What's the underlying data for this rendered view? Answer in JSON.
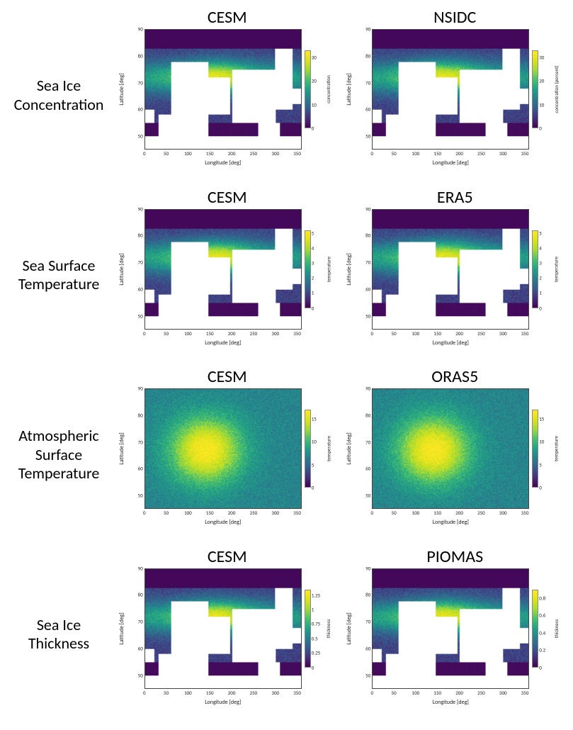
{
  "axis": {
    "xlabel": "Longitude [deg]",
    "ylabel": "Latitude [deg]",
    "xticks": [
      0,
      50,
      100,
      150,
      200,
      250,
      300,
      350
    ],
    "yticks": [
      50,
      60,
      70,
      80,
      90
    ],
    "xlim": [
      0,
      360
    ],
    "ylim": [
      45,
      90
    ],
    "tick_fontsize": 7,
    "label_fontsize": 8,
    "title_fontsize": 24,
    "rowlabel_fontsize": 22
  },
  "cmap": {
    "name": "viridis",
    "stops": [
      [
        0.0,
        "#440154"
      ],
      [
        0.13,
        "#46307e"
      ],
      [
        0.25,
        "#365c8d"
      ],
      [
        0.38,
        "#277f8e"
      ],
      [
        0.5,
        "#1fa187"
      ],
      [
        0.63,
        "#4ac16d"
      ],
      [
        0.75,
        "#a0da39"
      ],
      [
        0.88,
        "#dce319"
      ],
      [
        1.0,
        "#fde725"
      ]
    ]
  },
  "rows": [
    {
      "label": "Sea Ice Concentration",
      "clabel": "concentration",
      "clabel_right": "concentration (percent)",
      "land_color": "#ffffff",
      "show_land": true,
      "full_field": false,
      "left": {
        "title": "CESM",
        "cticks": [
          0,
          10,
          20,
          30
        ],
        "crange": [
          0,
          33
        ]
      },
      "right": {
        "title": "NSIDC",
        "cticks": [
          0,
          10,
          20,
          30
        ],
        "crange": [
          0,
          33
        ]
      }
    },
    {
      "label": "Sea Surface Temperature",
      "clabel": "temperature",
      "land_color": "#ffffff",
      "show_land": true,
      "full_field": false,
      "left": {
        "title": "CESM",
        "cticks": [
          0,
          1,
          2,
          3,
          4,
          5
        ],
        "crange": [
          0,
          5.2
        ]
      },
      "right": {
        "title": "ERA5",
        "cticks": [
          0,
          1,
          2,
          3,
          4,
          5
        ],
        "crange": [
          0,
          5.2
        ]
      }
    },
    {
      "label": "Atmospheric Surface Temperature",
      "clabel": "temperature",
      "land_color": "#ffffff",
      "show_land": false,
      "full_field": true,
      "left": {
        "title": "CESM",
        "cticks": [
          0,
          5,
          10,
          15
        ],
        "crange": [
          0,
          17
        ]
      },
      "right": {
        "title": "ORAS5",
        "cticks": [
          0,
          5,
          10,
          15
        ],
        "crange": [
          0,
          17
        ]
      }
    },
    {
      "label": "Sea Ice Thickness",
      "clabel": "thickness",
      "land_color": "#ffffff",
      "show_land": true,
      "full_field": false,
      "left": {
        "title": "CESM",
        "cticks": [
          0.0,
          0.25,
          0.5,
          0.75,
          1.0,
          1.25
        ],
        "crange": [
          0,
          1.35
        ]
      },
      "right": {
        "title": "PIOMAS",
        "cticks": [
          0.0,
          0.2,
          0.4,
          0.6,
          0.8
        ],
        "crange": [
          0,
          0.9
        ]
      }
    }
  ],
  "land_blocks": [
    [
      0,
      55,
      20,
      60,
      1
    ],
    [
      30,
      45,
      90,
      58,
      1
    ],
    [
      60,
      45,
      145,
      78,
      1
    ],
    [
      145,
      58,
      195,
      72,
      1
    ],
    [
      200,
      55,
      300,
      75,
      1
    ],
    [
      260,
      45,
      310,
      55,
      1
    ],
    [
      300,
      60,
      340,
      84,
      1
    ],
    [
      340,
      62,
      360,
      68,
      1
    ],
    [
      0,
      45,
      360,
      50,
      0
    ]
  ]
}
